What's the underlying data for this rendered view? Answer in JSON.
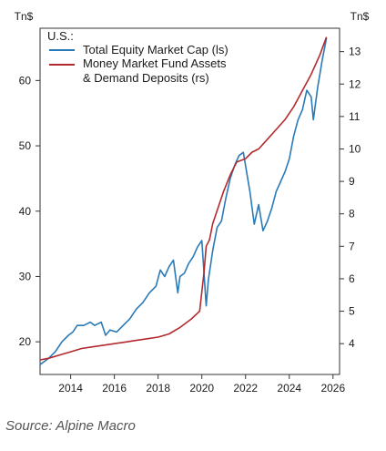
{
  "chart_data": {
    "type": "line",
    "title": "",
    "left_axis_unit": "Tn$",
    "right_axis_unit": "Tn$",
    "x_tick_labels": [
      "2014",
      "2016",
      "2018",
      "2020",
      "2022",
      "2024",
      "2026"
    ],
    "xlim": [
      2012.6,
      2026.3
    ],
    "ylim_left": [
      15,
      68
    ],
    "ylim_right": [
      3.05,
      13.72
    ],
    "y_left_ticks": [
      20,
      30,
      40,
      50,
      60
    ],
    "y_right_ticks": [
      4,
      5,
      6,
      7,
      8,
      9,
      10,
      11,
      12,
      13
    ],
    "legend_title": "U.S.:",
    "legend_position": "top-left",
    "grid": false,
    "series": [
      {
        "name": "Total Equity Market Cap (ls)",
        "axis": "left",
        "color": "#2a7ab8",
        "x": [
          2012.6,
          2013.0,
          2013.3,
          2013.6,
          2013.9,
          2014.1,
          2014.3,
          2014.6,
          2014.9,
          2015.1,
          2015.4,
          2015.6,
          2015.8,
          2016.1,
          2016.4,
          2016.7,
          2017.0,
          2017.3,
          2017.6,
          2017.9,
          2018.1,
          2018.3,
          2018.5,
          2018.7,
          2018.9,
          2019.0,
          2019.2,
          2019.4,
          2019.6,
          2019.8,
          2020.0,
          2020.2,
          2020.3,
          2020.5,
          2020.7,
          2020.9,
          2021.1,
          2021.3,
          2021.5,
          2021.7,
          2021.9,
          2022.0,
          2022.2,
          2022.4,
          2022.6,
          2022.8,
          2023.0,
          2023.2,
          2023.4,
          2023.6,
          2023.8,
          2024.0,
          2024.2,
          2024.4,
          2024.6,
          2024.8,
          2025.0,
          2025.1,
          2025.3,
          2025.5,
          2025.7
        ],
        "y": [
          16.5,
          17.5,
          18.5,
          20.0,
          21.0,
          21.5,
          22.5,
          22.5,
          23.0,
          22.5,
          23.0,
          21.0,
          21.8,
          21.5,
          22.5,
          23.5,
          25.0,
          26.0,
          27.5,
          28.5,
          31.0,
          30.0,
          31.5,
          32.5,
          27.5,
          30.0,
          30.5,
          32.0,
          33.0,
          34.5,
          35.5,
          25.5,
          29.5,
          34.0,
          37.5,
          38.5,
          42.0,
          45.0,
          47.0,
          48.5,
          49.0,
          47.0,
          43.0,
          38.0,
          41.0,
          37.0,
          38.5,
          40.5,
          43.0,
          44.5,
          46.0,
          48.0,
          51.5,
          54.0,
          55.5,
          58.5,
          57.5,
          54.0,
          59.0,
          63.0,
          66.5
        ]
      },
      {
        "name": "Money Market Fund Assets & Demand Deposits (rs)",
        "axis": "right",
        "color": "#b22a2e",
        "x": [
          2012.6,
          2013.0,
          2013.5,
          2014.0,
          2014.5,
          2015.0,
          2015.5,
          2016.0,
          2016.5,
          2017.0,
          2017.5,
          2018.0,
          2018.5,
          2019.0,
          2019.5,
          2019.9,
          2020.1,
          2020.2,
          2020.35,
          2020.5,
          2020.8,
          2021.0,
          2021.3,
          2021.6,
          2022.0,
          2022.3,
          2022.6,
          2023.0,
          2023.4,
          2023.8,
          2024.2,
          2024.6,
          2025.0,
          2025.4,
          2025.7
        ],
        "y": [
          3.5,
          3.55,
          3.65,
          3.75,
          3.85,
          3.9,
          3.95,
          4.0,
          4.05,
          4.1,
          4.15,
          4.2,
          4.3,
          4.5,
          4.75,
          5.0,
          6.2,
          7.0,
          7.2,
          7.7,
          8.3,
          8.7,
          9.2,
          9.6,
          9.7,
          9.9,
          10.0,
          10.3,
          10.6,
          10.9,
          11.3,
          11.8,
          12.3,
          12.9,
          13.45
        ]
      }
    ]
  },
  "source_text": "Source: Alpine Macro"
}
